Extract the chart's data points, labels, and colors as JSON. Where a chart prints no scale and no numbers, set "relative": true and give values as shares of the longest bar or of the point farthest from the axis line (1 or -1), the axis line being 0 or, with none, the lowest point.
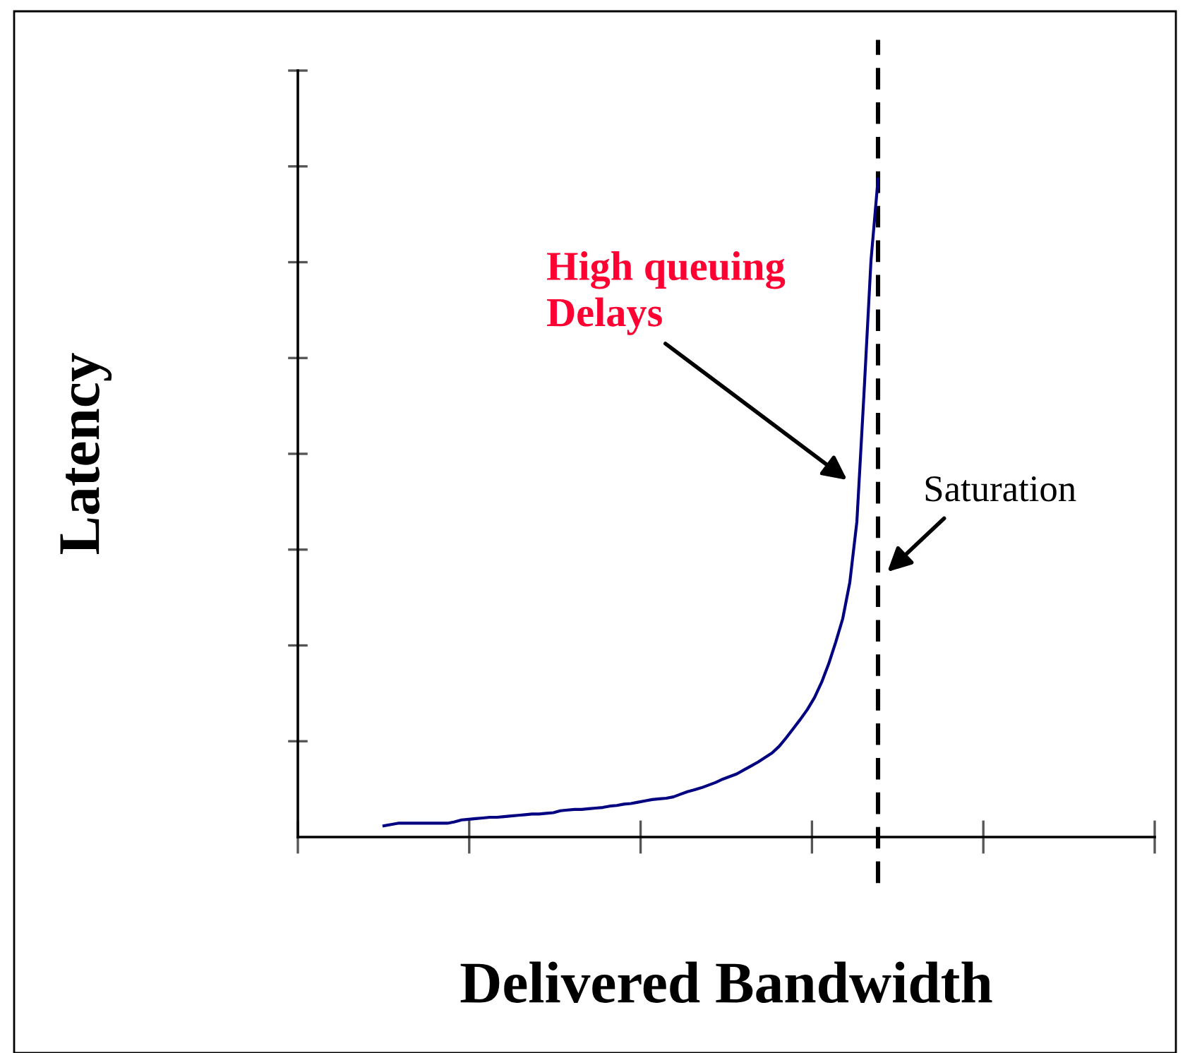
{
  "chart_data": {
    "type": "line",
    "relative": true,
    "xlabel": "Delivered Bandwidth",
    "ylabel": "Latency",
    "categories": [
      null,
      null,
      null,
      null,
      null,
      null,
      null,
      null,
      null,
      null,
      null,
      null,
      null,
      null,
      null,
      null,
      null,
      null,
      null,
      null,
      null,
      null,
      null,
      null,
      null,
      null,
      null,
      null,
      null,
      null,
      null,
      null,
      null,
      null,
      null,
      null,
      null,
      null,
      null,
      null,
      null,
      null,
      null,
      null,
      null,
      null,
      null,
      null,
      null,
      null,
      null,
      null,
      null,
      null,
      null,
      null,
      null,
      null,
      null,
      null,
      null,
      null,
      null,
      null,
      null,
      null,
      null,
      null,
      null,
      null,
      null
    ],
    "series": [
      {
        "color": "#000080",
        "values": [
          0.017,
          0.019,
          0.021,
          0.021,
          0.021,
          0.021,
          0.021,
          0.021,
          0.021,
          0.021,
          0.023,
          0.026,
          0.027,
          0.028,
          0.029,
          0.03,
          0.03,
          0.031,
          0.032,
          0.033,
          0.034,
          0.035,
          0.035,
          0.036,
          0.037,
          0.04,
          0.041,
          0.042,
          0.042,
          0.043,
          0.044,
          0.045,
          0.047,
          0.048,
          0.05,
          0.051,
          0.053,
          0.055,
          0.057,
          0.058,
          0.059,
          0.061,
          0.065,
          0.069,
          0.072,
          0.075,
          0.079,
          0.083,
          0.088,
          0.092,
          0.096,
          0.102,
          0.108,
          0.114,
          0.121,
          0.128,
          0.138,
          0.151,
          0.165,
          0.179,
          0.194,
          0.212,
          0.235,
          0.263,
          0.296,
          0.332,
          0.387,
          0.479,
          0.672,
          0.876,
          1.0
        ]
      }
    ],
    "ref_lines": [
      {
        "axis": "x",
        "color": "#000000",
        "line_style": "dashed"
      }
    ],
    "annotations": [
      "High queuing\nDelays",
      "Saturation"
    ],
    "grid": false,
    "legend": false,
    "marker": "none",
    "line_style": "solid"
  }
}
